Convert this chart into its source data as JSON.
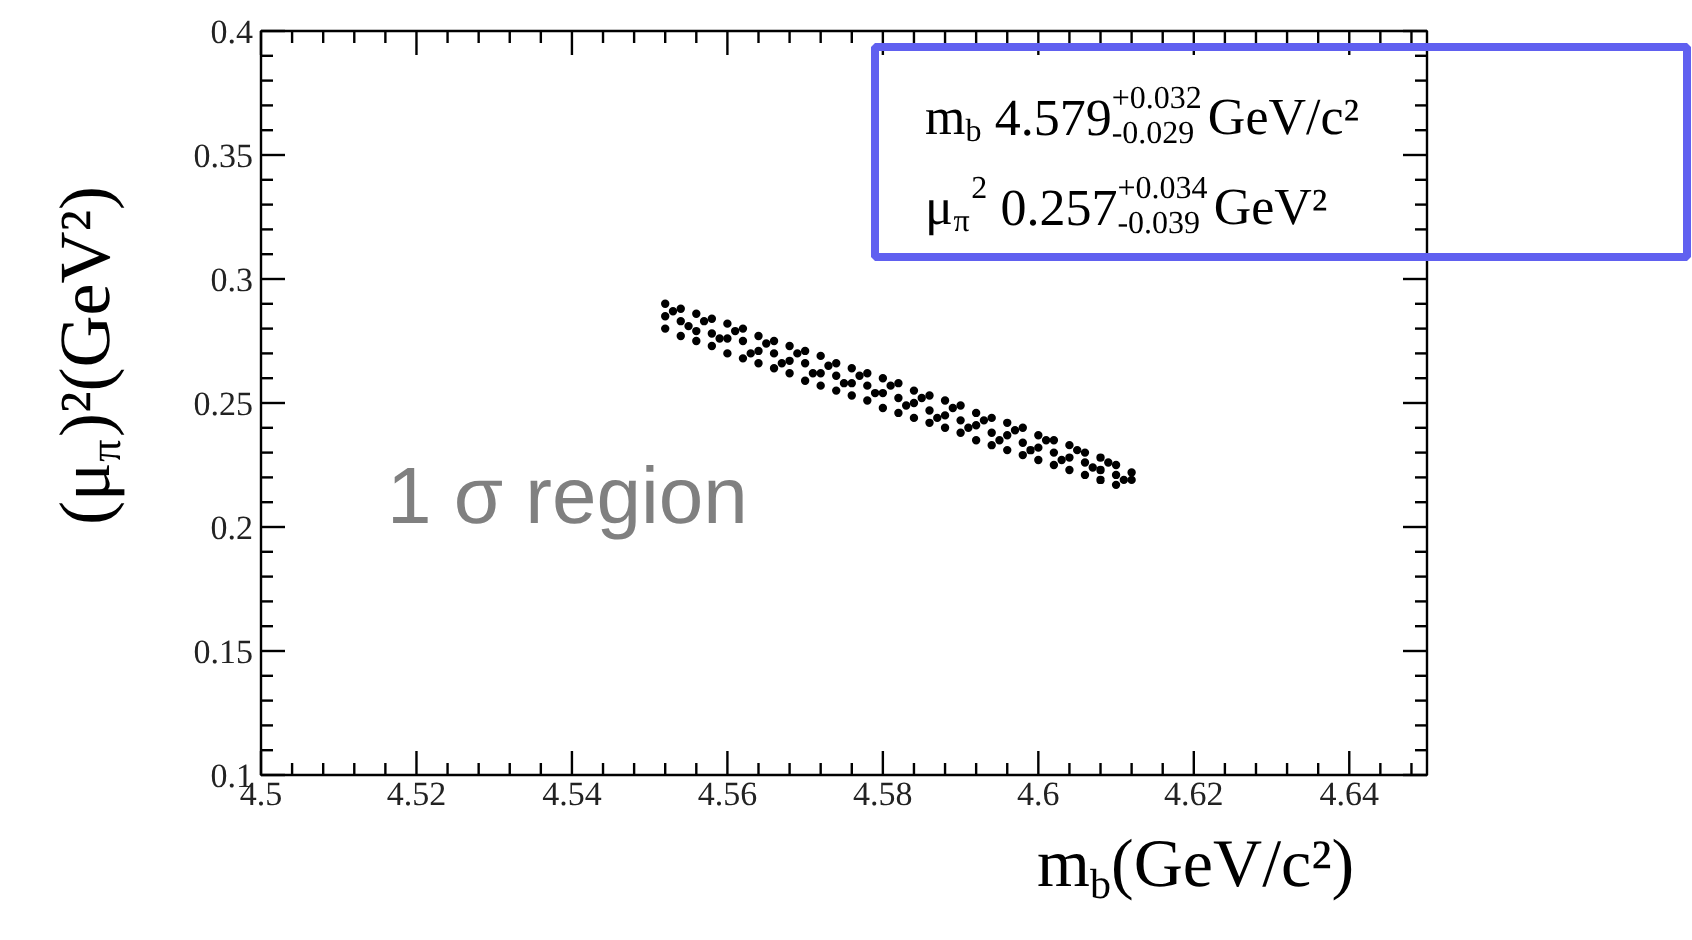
{
  "chart_data": {
    "type": "scatter",
    "xlabel": "m$_{b}$(GeV/c²)",
    "ylabel": "(μ$_{π}$)²(GeV²)",
    "xlim": [
      4.5,
      4.65
    ],
    "ylim": [
      0.1,
      0.4
    ],
    "xticks": [
      4.5,
      4.52,
      4.54,
      4.56,
      4.58,
      4.6,
      4.62,
      4.64
    ],
    "yticks": [
      0.1,
      0.15,
      0.2,
      0.25,
      0.3,
      0.35,
      0.4
    ],
    "grid": false,
    "marker": "circle",
    "annotations": [
      "m$_{b}$ 4.579$^{+0.032}$$_{-0.029}$ GeV/c²",
      "μ$_{π}$$^{2}$ 0.257$^{+0.034}$$_{-0.039}$ GeV²",
      "1 σ region"
    ],
    "series": [
      {
        "color": "#000000",
        "x": [
          4.552,
          4.552,
          4.552,
          4.553,
          4.554,
          4.554,
          4.554,
          4.555,
          4.556,
          4.556,
          4.556,
          4.557,
          4.558,
          4.558,
          4.558,
          4.559,
          4.56,
          4.56,
          4.56,
          4.561,
          4.562,
          4.562,
          4.562,
          4.563,
          4.564,
          4.564,
          4.564,
          4.565,
          4.566,
          4.566,
          4.566,
          4.567,
          4.568,
          4.568,
          4.568,
          4.569,
          4.57,
          4.57,
          4.57,
          4.571,
          4.572,
          4.572,
          4.572,
          4.573,
          4.574,
          4.574,
          4.574,
          4.575,
          4.576,
          4.576,
          4.576,
          4.577,
          4.578,
          4.578,
          4.578,
          4.579,
          4.58,
          4.58,
          4.58,
          4.581,
          4.582,
          4.582,
          4.582,
          4.583,
          4.584,
          4.584,
          4.584,
          4.585,
          4.586,
          4.586,
          4.586,
          4.587,
          4.588,
          4.588,
          4.588,
          4.589,
          4.59,
          4.59,
          4.59,
          4.591,
          4.592,
          4.592,
          4.592,
          4.593,
          4.594,
          4.594,
          4.594,
          4.595,
          4.596,
          4.596,
          4.596,
          4.597,
          4.598,
          4.598,
          4.598,
          4.599,
          4.6,
          4.6,
          4.6,
          4.601,
          4.602,
          4.602,
          4.602,
          4.603,
          4.604,
          4.604,
          4.604,
          4.605,
          4.606,
          4.606,
          4.606,
          4.607,
          4.608,
          4.608,
          4.608,
          4.609,
          4.61,
          4.61,
          4.61,
          4.611,
          4.612,
          4.612
        ],
        "values": [
          0.29,
          0.285,
          0.28,
          0.287,
          0.288,
          0.283,
          0.277,
          0.281,
          0.286,
          0.279,
          0.275,
          0.283,
          0.284,
          0.278,
          0.273,
          0.276,
          0.282,
          0.276,
          0.27,
          0.279,
          0.28,
          0.275,
          0.268,
          0.27,
          0.277,
          0.271,
          0.266,
          0.274,
          0.275,
          0.27,
          0.264,
          0.266,
          0.273,
          0.267,
          0.262,
          0.27,
          0.271,
          0.266,
          0.259,
          0.262,
          0.269,
          0.262,
          0.257,
          0.265,
          0.266,
          0.261,
          0.255,
          0.258,
          0.264,
          0.258,
          0.253,
          0.261,
          0.262,
          0.257,
          0.251,
          0.254,
          0.26,
          0.254,
          0.248,
          0.257,
          0.258,
          0.252,
          0.246,
          0.249,
          0.255,
          0.25,
          0.244,
          0.252,
          0.253,
          0.247,
          0.242,
          0.244,
          0.251,
          0.245,
          0.24,
          0.248,
          0.249,
          0.243,
          0.238,
          0.24,
          0.246,
          0.241,
          0.235,
          0.243,
          0.244,
          0.238,
          0.233,
          0.235,
          0.242,
          0.237,
          0.231,
          0.239,
          0.24,
          0.234,
          0.229,
          0.231,
          0.237,
          0.232,
          0.227,
          0.235,
          0.235,
          0.23,
          0.225,
          0.227,
          0.233,
          0.228,
          0.223,
          0.231,
          0.23,
          0.226,
          0.221,
          0.224,
          0.228,
          0.223,
          0.219,
          0.226,
          0.225,
          0.221,
          0.217,
          0.219,
          0.222,
          0.219
        ]
      }
    ]
  }
}
